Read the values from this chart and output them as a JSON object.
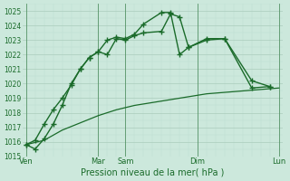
{
  "title": "",
  "xlabel": "Pression niveau de la mer( hPa )",
  "ylim": [
    1015,
    1025.5
  ],
  "yticks": [
    1015,
    1016,
    1017,
    1018,
    1019,
    1020,
    1021,
    1022,
    1023,
    1024,
    1025
  ],
  "bg_color": "#cce8dc",
  "grid_major_color": "#aaccbb",
  "grid_minor_color": "#bbddd0",
  "line_color": "#1a6b2a",
  "xlim": [
    -0.2,
    14.2
  ],
  "xtick_labels": [
    "Ven",
    "Mar",
    "Sam",
    "Dim",
    "Lun"
  ],
  "xtick_positions": [
    0,
    4,
    5.5,
    9.5,
    14
  ],
  "vline_positions": [
    0,
    4,
    5.5,
    9.5,
    14
  ],
  "series1_x": [
    0,
    0.5,
    1.0,
    1.5,
    2.0,
    2.5,
    3.0,
    3.5,
    4.0,
    4.5,
    5.0,
    5.5,
    6.0,
    6.5,
    7.5,
    8.0,
    8.5,
    9.0,
    10.0,
    11.0,
    12.5,
    13.5
  ],
  "series1_y": [
    1015.8,
    1016.1,
    1017.2,
    1018.2,
    1019.0,
    1019.9,
    1021.0,
    1021.8,
    1022.2,
    1022.0,
    1023.1,
    1023.0,
    1023.3,
    1023.5,
    1023.6,
    1024.8,
    1024.6,
    1022.5,
    1023.0,
    1023.1,
    1020.2,
    1019.8
  ],
  "series2_x": [
    0,
    0.5,
    1.0,
    1.5,
    2.0,
    2.5,
    3.0,
    3.5,
    4.0,
    4.5,
    5.0,
    5.5,
    6.0,
    6.5,
    7.5,
    8.0,
    8.5,
    9.0,
    10.0,
    11.0,
    12.5,
    13.5
  ],
  "series2_y": [
    1015.8,
    1015.5,
    1016.2,
    1017.2,
    1018.5,
    1020.0,
    1021.0,
    1021.8,
    1022.2,
    1023.0,
    1023.2,
    1023.1,
    1023.4,
    1024.1,
    1024.9,
    1024.9,
    1022.0,
    1022.5,
    1023.1,
    1023.1,
    1019.7,
    1019.8
  ],
  "series3_x": [
    0,
    1,
    2,
    3,
    4,
    5,
    6,
    7,
    8,
    9,
    10,
    11,
    12,
    13,
    14
  ],
  "series3_y": [
    1015.8,
    1016.1,
    1016.8,
    1017.3,
    1017.8,
    1018.2,
    1018.5,
    1018.7,
    1018.9,
    1019.1,
    1019.3,
    1019.4,
    1019.5,
    1019.6,
    1019.7
  ]
}
